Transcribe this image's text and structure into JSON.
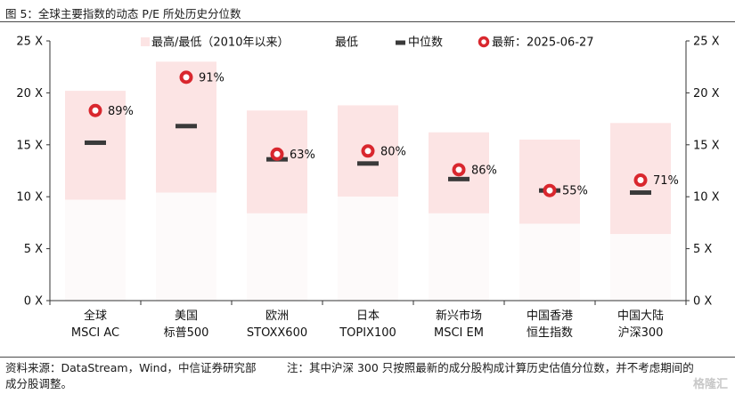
{
  "header": {
    "title": "图 5：全球主要指数的动态 P/E 所处历史分位数"
  },
  "footer": {
    "source_prefix": "资料来源：",
    "source": "DataStream，Wind，中信证券研究部",
    "note_line1": "注：其中沪深 300 只按照最新的成分股构成计算历史估值分位数，并不考虑期间的",
    "note_line2": "成分股调整。",
    "watermark": "格隆汇"
  },
  "chart_data": {
    "type": "range_bar",
    "title": "",
    "ylim": [
      0,
      25
    ],
    "yticks": [
      {
        "value": 0,
        "label": "0 X"
      },
      {
        "value": 5,
        "label": "5 X"
      },
      {
        "value": 10,
        "label": "10 X"
      },
      {
        "value": 15,
        "label": "15 X"
      },
      {
        "value": 20,
        "label": "20 X"
      },
      {
        "value": 25,
        "label": "25 X"
      }
    ],
    "legend": {
      "placement": "top",
      "entries": [
        {
          "label": "最高/最低（2010年以来）",
          "marker": "range"
        },
        {
          "label": "最低",
          "marker": "none"
        },
        {
          "label": "中位数",
          "marker": "median"
        },
        {
          "label": "最新：2025-06-27",
          "marker": "latest"
        }
      ]
    },
    "categories": [
      {
        "line1": "全球",
        "line2": "MSCI AC",
        "min": 9.7,
        "max": 20.2,
        "median": 15.2,
        "latest": 18.3,
        "percentile": "89%"
      },
      {
        "line1": "美国",
        "line2": "标普500",
        "min": 10.4,
        "max": 23.0,
        "median": 16.8,
        "latest": 21.5,
        "percentile": "91%"
      },
      {
        "line1": "欧洲",
        "line2": "STOXX600",
        "min": 8.4,
        "max": 18.3,
        "median": 13.6,
        "latest": 14.1,
        "percentile": "63%"
      },
      {
        "line1": "日本",
        "line2": "TOPIX100",
        "min": 10.0,
        "max": 18.8,
        "median": 13.2,
        "latest": 14.4,
        "percentile": "80%"
      },
      {
        "line1": "新兴市场",
        "line2": "MSCI EM",
        "min": 8.4,
        "max": 16.2,
        "median": 11.7,
        "latest": 12.6,
        "percentile": "86%"
      },
      {
        "line1": "中国香港",
        "line2": "恒生指数",
        "min": 7.4,
        "max": 15.5,
        "median": 10.6,
        "latest": 10.6,
        "percentile": "55%"
      },
      {
        "line1": "中国大陆",
        "line2": "沪深300",
        "min": 6.4,
        "max": 17.1,
        "median": 10.4,
        "latest": 11.6,
        "percentile": "71%"
      }
    ],
    "colors": {
      "range": "#fce4e4",
      "median": "#3a3a3a",
      "latest_ring": "#d9272e",
      "axis": "#333333"
    }
  }
}
